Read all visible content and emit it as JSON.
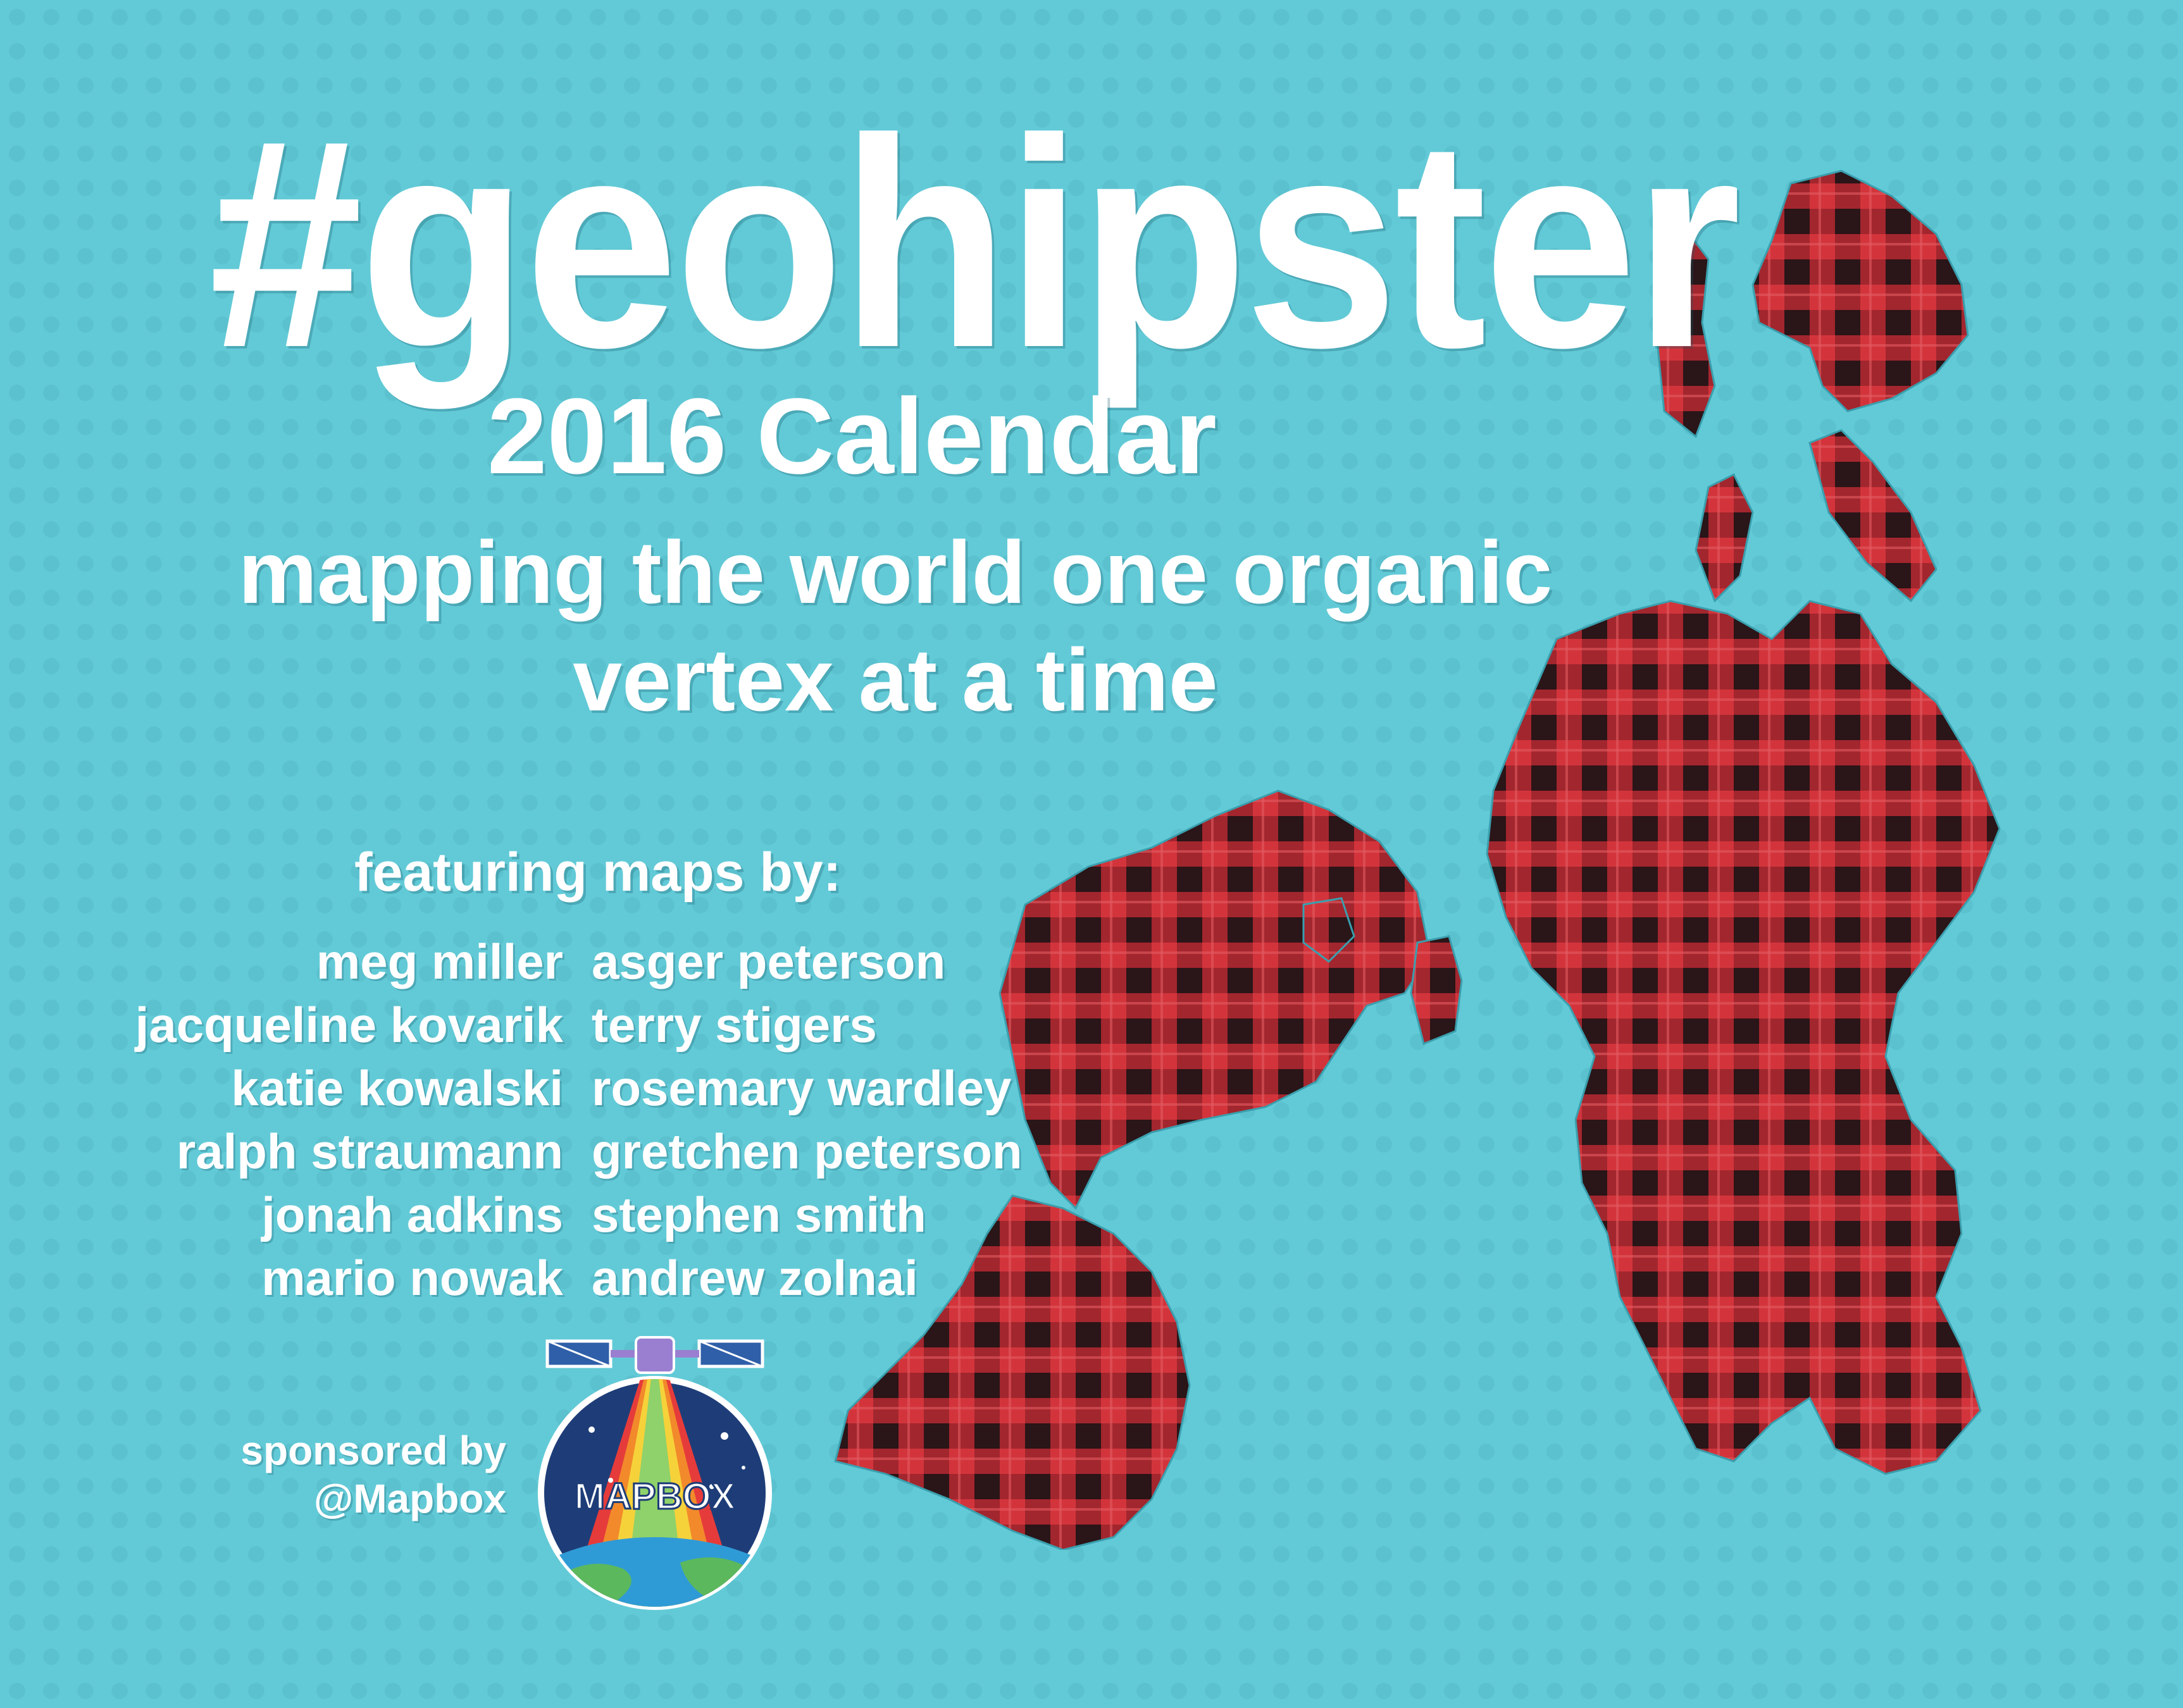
{
  "title": "#geohipster",
  "subtitle": "2016 Calendar",
  "tagline": {
    "line1": "mapping the world one organic",
    "line2": "vertex at a time"
  },
  "featuring_heading": "featuring maps by:",
  "contributors_left": [
    "meg miller",
    "jacqueline kovarik",
    "katie kowalski",
    "ralph straumann",
    "jonah adkins",
    "mario nowak"
  ],
  "contributors_right": [
    "asger peterson",
    "terry stigers",
    "rosemary wardley",
    "gretchen peterson",
    "stephen smith",
    "andrew zolnai"
  ],
  "sponsor": {
    "line1": "sponsored by",
    "line2": "@Mapbox"
  },
  "logo_text": "MAPBOX",
  "colors": {
    "background": "#62cad7",
    "plaid_red": "#d3343b",
    "plaid_dark": "#2a1518",
    "text": "#ffffff"
  }
}
